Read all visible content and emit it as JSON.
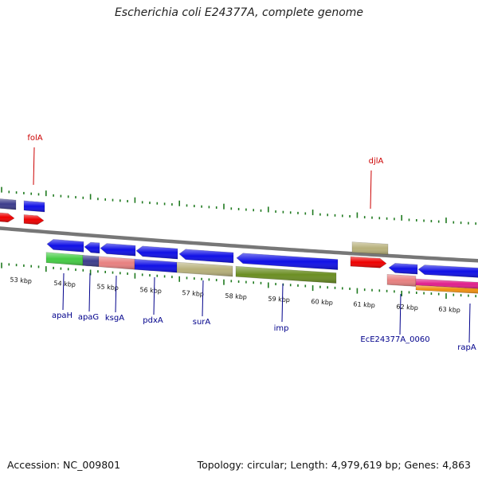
{
  "title": "Escherichia coli E24377A, complete genome",
  "footer": {
    "accession_label": "Accession:",
    "accession": "NC_009801",
    "topology_label": "Topology:",
    "topology": "circular",
    "length_label": "Length:",
    "length": "4,979,619 bp",
    "genes_label": "Genes:",
    "genes": "4,863"
  },
  "colors": {
    "backbone": "#777777",
    "tick": "#1f7a1f",
    "forward_label": "#cc0000",
    "reverse_label": "#00008b",
    "blue": "#1010e6",
    "red": "#ee0000",
    "navy": "#3c3c8c",
    "khaki": "#b7b07a",
    "olive": "#6b8e23",
    "green": "#44cc44",
    "salmon": "#e88080",
    "magenta": "#e0208c",
    "orange": "#f09010"
  },
  "kbp_ticks": [
    "53 kbp",
    "54 kbp",
    "55 kbp",
    "56 kbp",
    "57 kbp",
    "58 kbp",
    "59 kbp",
    "60 kbp",
    "61 kbp",
    "62 kbp",
    "63 kbp"
  ],
  "forward_genes": [
    "folA",
    "djlA"
  ],
  "reverse_genes": [
    "apaH",
    "apaG",
    "ksgA",
    "pdxA",
    "surA",
    "imp",
    "EcE24377A_0060",
    "rapA"
  ]
}
